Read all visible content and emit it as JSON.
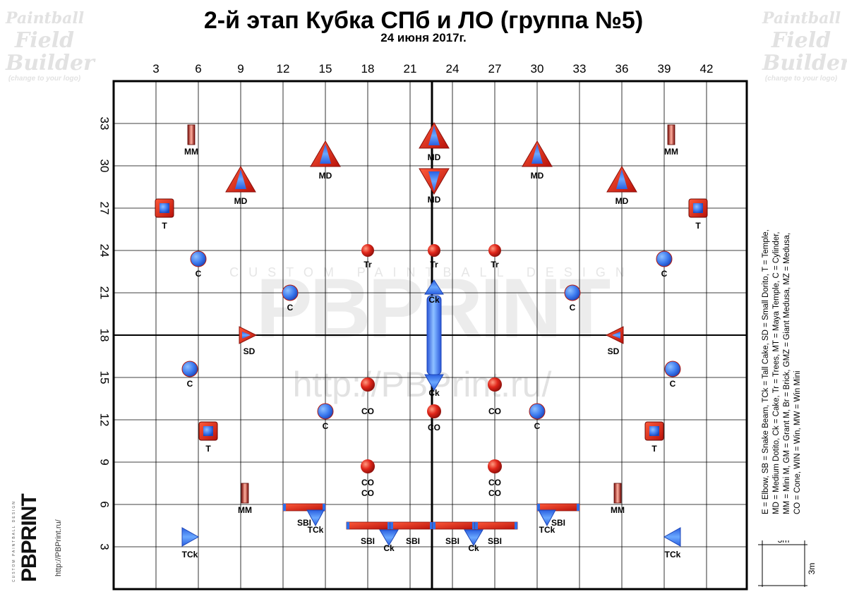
{
  "title": "2-й этап Кубка СПб и ЛО (группа №5)",
  "subtitle": "24 июня 2017г.",
  "watermark_corner": {
    "line1": "Paintball",
    "line2": "Field",
    "line3": "Builder",
    "line4": "(change to your logo)"
  },
  "watermark_center": {
    "line1": "CUSTOM PAINTBALL DESIGN",
    "line2": "PBPRINT",
    "line3": "http://PBPrint.ru/"
  },
  "brand": {
    "name": "PBPRINT",
    "url": "http://PBPrint.ru/",
    "tagline": "CUSTOM PAINTBALL DESIGN"
  },
  "legend_lines": [
    "E = Elbow, SB = Snake Beam, TCk = Tall Cake, SD = Small Dorito, T = Temple,",
    "MD = Medium Dotito, Ck = Cake, Tr = Trees, MT = Maya Temple, C = Cylinder,",
    "MM = Mini M, GM = Grant M, Br = Brick, GMZ = Giant Medusa, MZ = Medusa,",
    "CO = Cone, WIN = Win, MW = Win Mini"
  ],
  "scale": {
    "h": "3m",
    "v": "3m"
  },
  "axes": {
    "x_ticks": [
      3,
      6,
      9,
      12,
      15,
      18,
      21,
      24,
      27,
      30,
      33,
      36,
      39,
      42
    ],
    "y_ticks": [
      3,
      6,
      9,
      12,
      15,
      18,
      21,
      24,
      27,
      30,
      33
    ]
  },
  "colors": {
    "red": "#e8251c",
    "blue": "#2f6fe8",
    "dark_red": "#8a0f0a"
  },
  "obstacles": [
    {
      "type": "MM",
      "label": "MM",
      "x": 5.5,
      "y": 32.2
    },
    {
      "type": "MM",
      "label": "MM",
      "x": 39.5,
      "y": 32.2
    },
    {
      "type": "MD",
      "label": "MD",
      "x": 15,
      "y": 30.7
    },
    {
      "type": "MD",
      "label": "MD",
      "x": 22.7,
      "y": 32.0
    },
    {
      "type": "MD",
      "label": "MD",
      "x": 30,
      "y": 30.7
    },
    {
      "type": "MD",
      "label": "MD",
      "x": 9,
      "y": 28.9
    },
    {
      "type": "MD",
      "label": "MD",
      "x": 36,
      "y": 28.9
    },
    {
      "type": "MD_down",
      "label": "MD",
      "x": 22.7,
      "y": 29.0
    },
    {
      "type": "T",
      "label": "T",
      "x": 3.6,
      "y": 27
    },
    {
      "type": "T",
      "label": "T",
      "x": 41.4,
      "y": 27
    },
    {
      "type": "C",
      "label": "C",
      "x": 6,
      "y": 23.4
    },
    {
      "type": "C",
      "label": "C",
      "x": 39,
      "y": 23.4
    },
    {
      "type": "Tr",
      "label": "Tr",
      "x": 18,
      "y": 24
    },
    {
      "type": "Tr",
      "label": "Tr",
      "x": 22.7,
      "y": 24
    },
    {
      "type": "Tr",
      "label": "Tr",
      "x": 27,
      "y": 24
    },
    {
      "type": "C",
      "label": "C",
      "x": 12.5,
      "y": 21
    },
    {
      "type": "C",
      "label": "C",
      "x": 32.5,
      "y": 21
    },
    {
      "type": "Ck_up",
      "label": "Ck",
      "x": 22.7,
      "y": 21.3
    },
    {
      "type": "Ck_down",
      "label": "Ck",
      "x": 22.7,
      "y": 14.7
    },
    {
      "type": "SD",
      "label": "SD",
      "x": 9.5,
      "y": 18,
      "dir": "right"
    },
    {
      "type": "SD",
      "label": "SD",
      "x": 35.5,
      "y": 18,
      "dir": "left"
    },
    {
      "type": "C",
      "label": "C",
      "x": 5.4,
      "y": 15.6
    },
    {
      "type": "C",
      "label": "C",
      "x": 39.6,
      "y": 15.6
    },
    {
      "type": "CO",
      "label": "",
      "x": 18,
      "y": 14.5
    },
    {
      "type": "CO",
      "label": "",
      "x": 27,
      "y": 14.5
    },
    {
      "type": "C",
      "label": "C",
      "x": 15,
      "y": 12.6
    },
    {
      "type": "C",
      "label": "C",
      "x": 30,
      "y": 12.6
    },
    {
      "type": "CO",
      "label": "CO",
      "x": 22.7,
      "y": 12.6
    },
    {
      "type": "T",
      "label": "T",
      "x": 6.7,
      "y": 11.2
    },
    {
      "type": "T",
      "label": "T",
      "x": 38.3,
      "y": 11.2
    },
    {
      "type": "CO",
      "label": "CO",
      "x": 18,
      "y": 8.7
    },
    {
      "type": "CO",
      "label": "CO",
      "x": 27,
      "y": 8.7
    },
    {
      "type": "MM",
      "label": "MM",
      "x": 9.3,
      "y": 6.8
    },
    {
      "type": "MM",
      "label": "MM",
      "x": 35.7,
      "y": 6.8
    },
    {
      "type": "TCk",
      "label": "TCk",
      "x": 5.4,
      "y": 3.7,
      "dir": "right"
    },
    {
      "type": "TCk",
      "label": "TCk",
      "x": 39.6,
      "y": 3.7,
      "dir": "left"
    },
    {
      "type": "TCk_down",
      "label": "TCk",
      "x": 14.3,
      "y": 5.1
    },
    {
      "type": "TCk_down",
      "label": "TCk",
      "x": 30.7,
      "y": 5.1
    },
    {
      "type": "Ck_down",
      "label": "Ck",
      "x": 19.5,
      "y": 3.7
    },
    {
      "type": "Ck_down",
      "label": "Ck",
      "x": 25.5,
      "y": 3.7
    }
  ],
  "beams": [
    {
      "label": "SBI",
      "x1": 12,
      "x2": 15,
      "y": 5.8
    },
    {
      "label": "SBI",
      "x1": 30,
      "x2": 33,
      "y": 5.8
    },
    {
      "label": "SBI",
      "x1": 16.5,
      "x2": 19.6,
      "y": 4.5
    },
    {
      "label": "SBI",
      "x1": 19.6,
      "x2": 22.6,
      "y": 4.5
    },
    {
      "label": "SBI",
      "x1": 22.6,
      "x2": 25.6,
      "y": 4.5
    },
    {
      "label": "SBI",
      "x1": 25.6,
      "x2": 28.6,
      "y": 4.5
    }
  ],
  "free_labels": [
    {
      "text": "CO",
      "x": 18,
      "y": 12.4
    },
    {
      "text": "CO",
      "x": 27,
      "y": 12.4
    },
    {
      "text": "CO",
      "x": 18,
      "y": 6.6
    },
    {
      "text": "CO",
      "x": 27,
      "y": 6.6
    },
    {
      "text": "SBI",
      "x": 13.5,
      "y": 4.5
    },
    {
      "text": "SBI",
      "x": 31.5,
      "y": 4.5
    },
    {
      "text": "SBI",
      "x": 18,
      "y": 3.2
    },
    {
      "text": "SBI",
      "x": 21.2,
      "y": 3.2
    },
    {
      "text": "SBI",
      "x": 24,
      "y": 3.2
    },
    {
      "text": "SBI",
      "x": 27,
      "y": 3.2
    }
  ]
}
